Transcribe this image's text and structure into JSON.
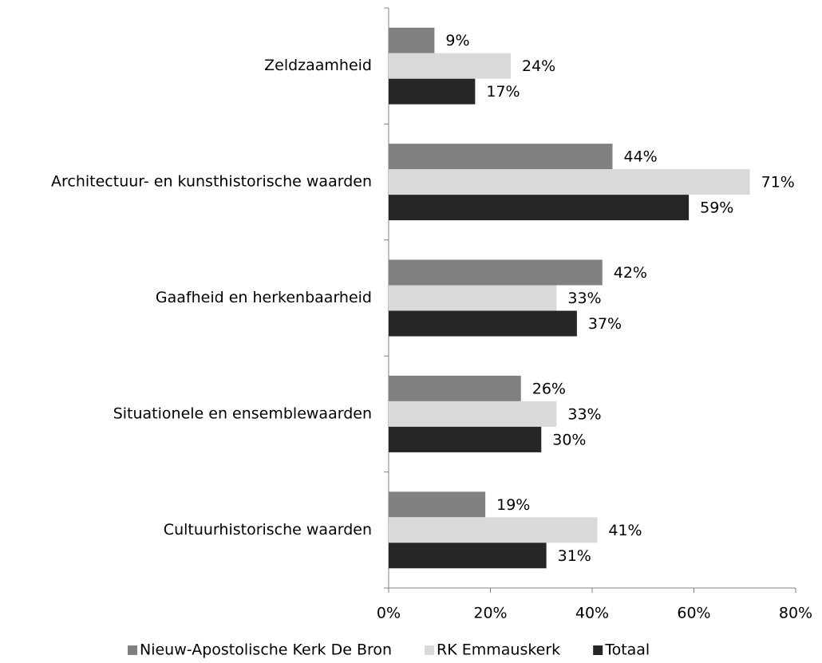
{
  "chart_data": {
    "type": "bar",
    "orientation": "horizontal",
    "categories": [
      "Zeldzaamheid",
      "Architectuur- en kunsthistorische waarden",
      "Gaafheid en herkenbaarheid",
      "Situationele en ensemblewaarden",
      "Cultuurhistorische waarden"
    ],
    "series": [
      {
        "name": "Nieuw-Apostolische Kerk De Bron",
        "color": "#808080",
        "values": [
          9,
          44,
          42,
          26,
          19
        ],
        "value_labels": [
          "9%",
          "44%",
          "42%",
          "26%",
          "19%"
        ]
      },
      {
        "name": "RK Emmauskerk",
        "color": "#d9d9d9",
        "values": [
          24,
          71,
          33,
          33,
          41
        ],
        "value_labels": [
          "24%",
          "71%",
          "33%",
          "33%",
          "41%"
        ]
      },
      {
        "name": "Totaal",
        "color": "#262626",
        "values": [
          17,
          59,
          37,
          30,
          31
        ],
        "value_labels": [
          "17%",
          "59%",
          "37%",
          "30%",
          "31%"
        ]
      }
    ],
    "xlim": [
      0,
      80
    ],
    "xticks": [
      {
        "value": 0,
        "label": "0%"
      },
      {
        "value": 20,
        "label": "20%"
      },
      {
        "value": 40,
        "label": "40%"
      },
      {
        "value": 60,
        "label": "60%"
      },
      {
        "value": 80,
        "label": "80%"
      }
    ],
    "legend": "bottom"
  }
}
